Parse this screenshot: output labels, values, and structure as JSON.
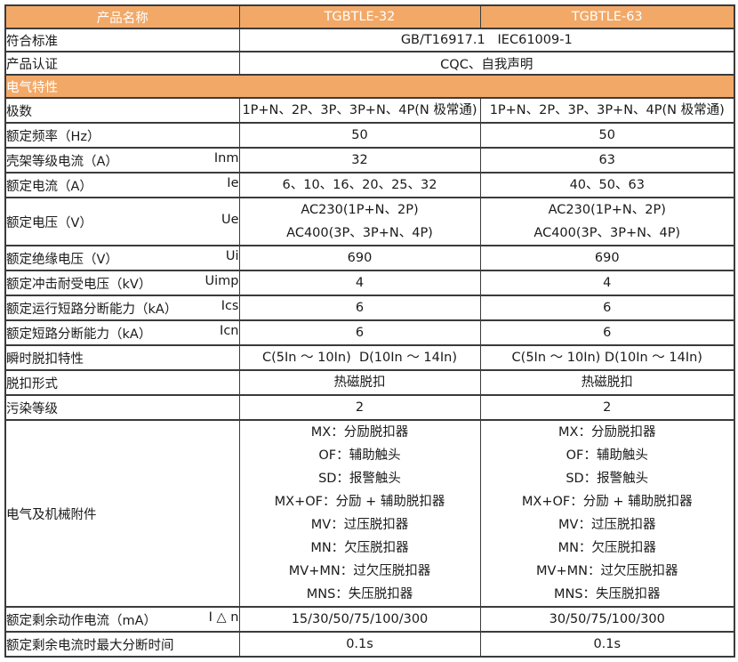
{
  "colors": {
    "header_bg": "#F2A968",
    "header_text": "#FFFFFF",
    "border": "#3B3B3B",
    "body_text": "#1A1A1A",
    "cell_bg": "#FFFFFF"
  },
  "table": {
    "header": {
      "label": "产品名称",
      "col1": "TGBTLE-32",
      "col2": "TGBTLE-63"
    },
    "rows": [
      {
        "type": "span2",
        "label": "符合标准",
        "value": "GB/T16917.1   IEC61009-1"
      },
      {
        "type": "span2",
        "label": "产品认证",
        "value": "CQC、自我声明"
      },
      {
        "type": "section",
        "label": "电气特性"
      },
      {
        "type": "cols",
        "label": "极数",
        "v1": [
          "1P+N、2P、3P、3P+N、4P(N 极常通)"
        ],
        "v2": [
          "1P+N、2P、3P、3P+N、4P(N 极常通)"
        ]
      },
      {
        "type": "cols",
        "label": "额定频率（Hz）",
        "v1": [
          "50"
        ],
        "v2": [
          "50"
        ]
      },
      {
        "type": "cols",
        "label": "壳架等级电流（A）",
        "sym": "Inm",
        "v1": [
          "32"
        ],
        "v2": [
          "63"
        ]
      },
      {
        "type": "cols",
        "label": "额定电流（A）",
        "sym": "Ie",
        "v1": [
          "6、10、16、20、25、32"
        ],
        "v2": [
          "40、50、63"
        ]
      },
      {
        "type": "cols",
        "label": "额定电压（V）",
        "sym": "Ue",
        "v1": [
          "AC230(1P+N、2P)",
          "AC400(3P、3P+N、4P)"
        ],
        "v2": [
          "AC230(1P+N、2P)",
          "AC400(3P、3P+N、4P)"
        ]
      },
      {
        "type": "cols",
        "label": "额定绝缘电压（V）",
        "sym": "Ui",
        "v1": [
          "690"
        ],
        "v2": [
          "690"
        ]
      },
      {
        "type": "cols",
        "label": "额定冲击耐受电压（kV）",
        "sym": "Uimp",
        "v1": [
          "4"
        ],
        "v2": [
          "4"
        ]
      },
      {
        "type": "cols",
        "label": "额定运行短路分断能力（kA）",
        "sym": "Ics",
        "v1": [
          "6"
        ],
        "v2": [
          "6"
        ]
      },
      {
        "type": "cols",
        "label": "额定短路分断能力（kA）",
        "sym": "Icn",
        "v1": [
          "6"
        ],
        "v2": [
          "6"
        ]
      },
      {
        "type": "cols",
        "label": "瞬时脱扣特性",
        "v1": [
          "C(5In ～ 10In)  D(10In ～ 14In)"
        ],
        "v2": [
          "C(5In ～ 10In) D(10In ～ 14In)"
        ]
      },
      {
        "type": "cols",
        "label": "脱扣形式",
        "v1": [
          "热磁脱扣"
        ],
        "v2": [
          "热磁脱扣"
        ]
      },
      {
        "type": "cols",
        "label": "污染等级",
        "v1": [
          "2"
        ],
        "v2": [
          "2"
        ]
      },
      {
        "type": "cols",
        "label": "电气及机械附件",
        "v1": [
          "MX：分励脱扣器",
          "OF：辅助触头",
          "SD：报警触头",
          "MX+OF：分励 + 辅助脱扣器",
          "MV：过压脱扣器",
          "MN：欠压脱扣器",
          "MV+MN：过欠压脱扣器",
          "MNS：失压脱扣器"
        ],
        "v2": [
          "MX：分励脱扣器",
          "OF：辅助触头",
          "SD：报警触头",
          "MX+OF：分励 + 辅助脱扣器",
          "MV：过压脱扣器",
          "MN：欠压脱扣器",
          "MV+MN：过欠压脱扣器",
          "MNS：失压脱扣器"
        ]
      },
      {
        "type": "cols",
        "label": "额定剩余动作电流（mA）",
        "sym": "I △ n",
        "v1": [
          "15/30/50/75/100/300"
        ],
        "v2": [
          "30/50/75/100/300"
        ]
      },
      {
        "type": "cols",
        "label": "额定剩余电流时最大分断时间",
        "v1": [
          "0.1s"
        ],
        "v2": [
          "0.1s"
        ]
      }
    ]
  }
}
